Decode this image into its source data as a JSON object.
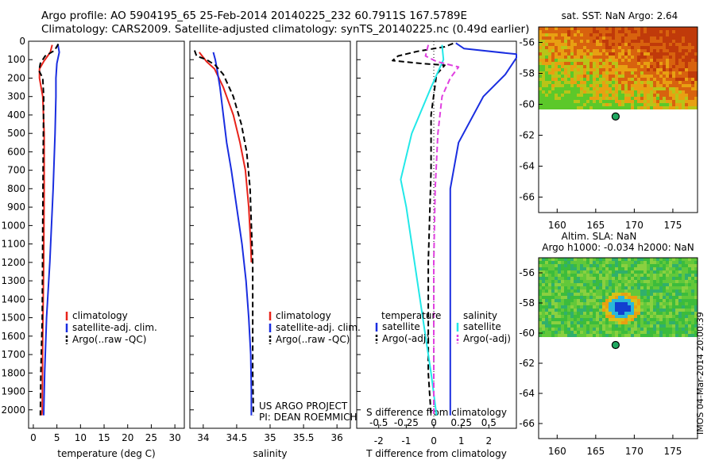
{
  "header": {
    "line1": "Argo profile: AO 5904195_65 25-Feb-2014 20140225_232 60.7911S 167.5789E",
    "line2": "Climatology: CARS2009. Satellite-adjusted climatology: synTS_20140225.nc (0.49d earlier)"
  },
  "stamp": "IMOS 04-Mar-2014 20:00:39",
  "colors": {
    "climatology": "#e8231a",
    "satellite": "#1a2ee0",
    "argo": "#000000",
    "sal_satellite": "#22e8e8",
    "sal_argo": "#e040e0"
  },
  "chart_data": [
    {
      "type": "line",
      "name": "temperature",
      "xlabel": "temperature (deg C)",
      "ylabel": "",
      "xlim": [
        -1,
        32
      ],
      "ylim": [
        2100,
        0
      ],
      "xticks": [
        0,
        5,
        10,
        15,
        20,
        25,
        30
      ],
      "yticks": [
        0,
        100,
        200,
        300,
        400,
        500,
        600,
        700,
        800,
        900,
        1000,
        1100,
        1200,
        1300,
        1400,
        1500,
        1600,
        1700,
        1800,
        1900,
        2000
      ],
      "legend": [
        "climatology",
        "satellite-adj. clim.",
        "Argo(..raw -QC)"
      ],
      "legend_placement": "lower-center",
      "series": [
        {
          "name": "climatology",
          "style": "solid",
          "color": "#e8231a",
          "points": [
            [
              4.0,
              20
            ],
            [
              3.6,
              60
            ],
            [
              2.2,
              110
            ],
            [
              1.3,
              150
            ],
            [
              1.3,
              200
            ],
            [
              2.0,
              300
            ],
            [
              2.3,
              500
            ],
            [
              2.3,
              800
            ],
            [
              2.2,
              1200
            ],
            [
              2.0,
              1600
            ],
            [
              1.9,
              2000
            ],
            [
              1.8,
              2030
            ]
          ]
        },
        {
          "name": "satellite-adj. clim.",
          "style": "solid",
          "color": "#1a2ee0",
          "points": [
            [
              5.2,
              15
            ],
            [
              5.5,
              60
            ],
            [
              5.0,
              120
            ],
            [
              4.8,
              200
            ],
            [
              4.8,
              300
            ],
            [
              4.6,
              500
            ],
            [
              4.2,
              800
            ],
            [
              3.5,
              1200
            ],
            [
              2.8,
              1500
            ],
            [
              2.4,
              1800
            ],
            [
              2.2,
              2030
            ]
          ]
        },
        {
          "name": "Argo(..raw -QC)",
          "style": "dashed",
          "color": "#000000",
          "points": [
            [
              5.3,
              15
            ],
            [
              4.5,
              50
            ],
            [
              2.5,
              80
            ],
            [
              1.5,
              120
            ],
            [
              1.2,
              160
            ],
            [
              2.0,
              200
            ],
            [
              2.2,
              300
            ],
            [
              2.1,
              600
            ],
            [
              2.0,
              1000
            ],
            [
              1.9,
              1500
            ],
            [
              1.6,
              1800
            ],
            [
              1.5,
              2030
            ]
          ]
        }
      ]
    },
    {
      "type": "line",
      "name": "salinity",
      "xlabel": "salinity",
      "ylabel": "",
      "xlim": [
        33.8,
        36.2
      ],
      "ylim": [
        2100,
        0
      ],
      "xticks": [
        34,
        34.5,
        35,
        35.5,
        36
      ],
      "legend": [
        "climatology",
        "satellite-adj. clim.",
        "Argo(..raw -QC)"
      ],
      "legend_placement": "lower-right",
      "annotations": [
        "US ARGO PROJECT",
        "PI: DEAN ROEMMICH"
      ],
      "series": [
        {
          "name": "climatology",
          "style": "solid",
          "color": "#e8231a",
          "points": [
            [
              33.94,
              60
            ],
            [
              34.05,
              110
            ],
            [
              34.17,
              150
            ],
            [
              34.3,
              250
            ],
            [
              34.45,
              400
            ],
            [
              34.55,
              550
            ],
            [
              34.63,
              700
            ],
            [
              34.68,
              900
            ],
            [
              34.71,
              1100
            ],
            [
              34.72,
              1200
            ]
          ]
        },
        {
          "name": "satellite-adj. clim.",
          "style": "solid",
          "color": "#1a2ee0",
          "points": [
            [
              34.15,
              60
            ],
            [
              34.18,
              100
            ],
            [
              34.2,
              140
            ],
            [
              34.25,
              250
            ],
            [
              34.3,
              400
            ],
            [
              34.35,
              550
            ],
            [
              34.42,
              700
            ],
            [
              34.5,
              900
            ],
            [
              34.58,
              1100
            ],
            [
              34.64,
              1300
            ],
            [
              34.68,
              1500
            ],
            [
              34.71,
              1700
            ],
            [
              34.72,
              1900
            ],
            [
              34.72,
              2030
            ]
          ]
        },
        {
          "name": "Argo(..raw -QC)",
          "style": "dashed",
          "color": "#000000",
          "points": [
            [
              33.87,
              50
            ],
            [
              33.9,
              80
            ],
            [
              34.05,
              100
            ],
            [
              34.18,
              130
            ],
            [
              34.3,
              180
            ],
            [
              34.45,
              300
            ],
            [
              34.57,
              450
            ],
            [
              34.65,
              600
            ],
            [
              34.7,
              800
            ],
            [
              34.72,
              1000
            ],
            [
              34.74,
              1200
            ],
            [
              34.74,
              1500
            ],
            [
              34.74,
              1800
            ],
            [
              34.75,
              2030
            ]
          ]
        }
      ]
    },
    {
      "type": "line",
      "name": "difference",
      "xlabel_bottom": "T difference from climatology",
      "xlabel_top": "S difference from climatology",
      "xlim": [
        -2.8,
        3.0
      ],
      "ylim": [
        2100,
        0
      ],
      "xticks_bottom": [
        -2,
        -1,
        0,
        1,
        2
      ],
      "xticks_top": [
        "-0.5",
        "-0.25",
        "0",
        "0.25",
        "0.5"
      ],
      "legend_headers": [
        "temperature",
        "salinity"
      ],
      "legend": [
        "satellite",
        "Argo(-adj)",
        "satellite",
        "Argo(-adj)"
      ],
      "legend_placement": "lower-center",
      "series": [
        {
          "name": "temperature satellite",
          "style": "solid",
          "color": "#1a2ee0",
          "points": [
            [
              0.8,
              10
            ],
            [
              1.1,
              40
            ],
            [
              3.0,
              70
            ],
            [
              3.0,
              90
            ],
            [
              2.6,
              180
            ],
            [
              1.8,
              300
            ],
            [
              0.9,
              550
            ],
            [
              0.6,
              800
            ],
            [
              0.6,
              1200
            ],
            [
              0.6,
              1700
            ],
            [
              0.6,
              1900
            ],
            [
              0.6,
              2030
            ]
          ]
        },
        {
          "name": "temperature Argo(-adj)",
          "style": "dashed",
          "color": "#000000",
          "points": [
            [
              0.7,
              12
            ],
            [
              0.4,
              30
            ],
            [
              -0.6,
              55
            ],
            [
              -1.3,
              80
            ],
            [
              -1.5,
              105
            ],
            [
              -0.5,
              120
            ],
            [
              0.4,
              130
            ],
            [
              0.1,
              180
            ],
            [
              -0.1,
              400
            ],
            [
              -0.1,
              700
            ],
            [
              -0.2,
              1200
            ],
            [
              -0.2,
              1800
            ],
            [
              -0.1,
              2030
            ]
          ]
        },
        {
          "name": "salinity satellite",
          "style": "solid",
          "color": "#22e8e8",
          "points": [
            [
              0.3,
              20
            ],
            [
              0.35,
              100
            ],
            [
              -0.1,
              250
            ],
            [
              -0.8,
              500
            ],
            [
              -1.2,
              750
            ],
            [
              -1.0,
              900
            ],
            [
              -0.7,
              1200
            ],
            [
              -0.3,
              1600
            ],
            [
              -0.1,
              1800
            ],
            [
              0.1,
              2030
            ]
          ]
        },
        {
          "name": "salinity Argo(-adj)",
          "style": "dashed",
          "color": "#e040e0",
          "points": [
            [
              -0.2,
              20
            ],
            [
              -0.3,
              80
            ],
            [
              0.1,
              110
            ],
            [
              0.9,
              140
            ],
            [
              0.6,
              200
            ],
            [
              0.3,
              300
            ],
            [
              0.15,
              500
            ],
            [
              0.05,
              800
            ],
            [
              0.0,
              1200
            ],
            [
              0.0,
              1700
            ],
            [
              0.0,
              2030
            ]
          ]
        }
      ]
    },
    {
      "type": "heatmap",
      "name": "sst-map",
      "title": "sat. SST: NaN Argo: 2.64",
      "xlim": [
        157.6,
        178.2
      ],
      "ylim": [
        -67,
        -55
      ],
      "xticks": [
        160,
        165,
        170,
        175
      ],
      "yticks": [
        -56,
        -58,
        -60,
        -62,
        -64,
        -66
      ],
      "argo_position": [
        167.58,
        -60.79
      ]
    },
    {
      "type": "heatmap",
      "name": "sla-map",
      "title_lines": [
        "Altim. SLA: NaN",
        "Argo h1000: -0.034 h2000: NaN"
      ],
      "xlim": [
        157.6,
        178.2
      ],
      "ylim": [
        -67,
        -55
      ],
      "xticks": [
        160,
        165,
        170,
        175
      ],
      "yticks": [
        -56,
        -58,
        -60,
        -62,
        -64,
        -66
      ],
      "argo_position": [
        167.58,
        -60.79
      ]
    }
  ]
}
